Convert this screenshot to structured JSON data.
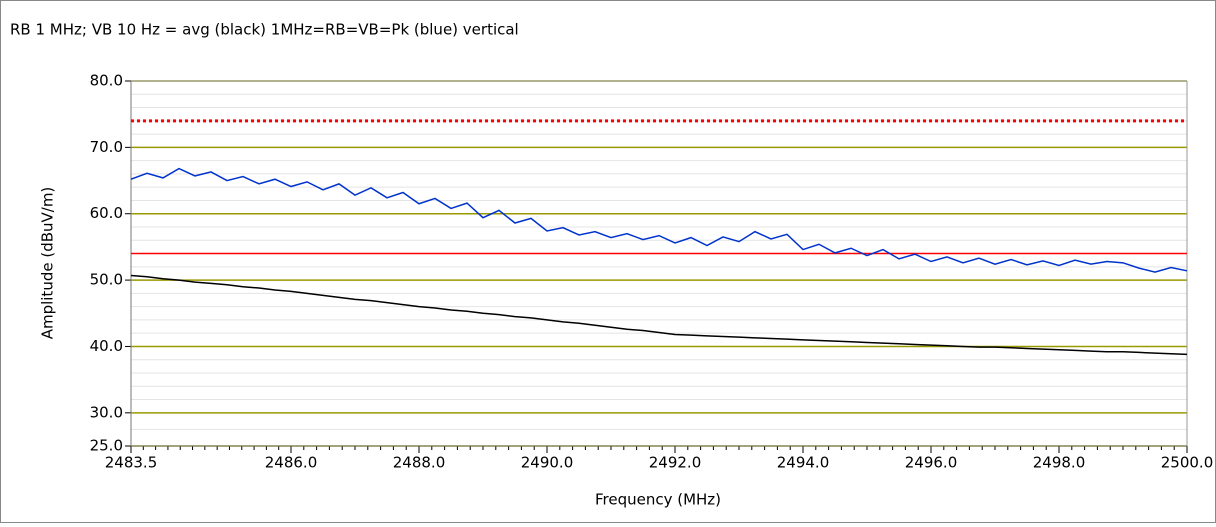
{
  "chart_data": {
    "type": "line",
    "title": "RB 1 MHz; VB 10 Hz = avg (black) 1MHz=RB=VB=Pk (blue) vertical",
    "xlabel": "Frequency (MHz)",
    "ylabel": "Amplitude (dBuV/m)",
    "xlim": [
      2483.5,
      2500
    ],
    "ylim": [
      25,
      80
    ],
    "xticks": [
      {
        "value": 2483.5,
        "label": "2483.5"
      },
      {
        "value": 2486,
        "label": "2486.0"
      },
      {
        "value": 2488,
        "label": "2488.0"
      },
      {
        "value": 2490,
        "label": "2490.0"
      },
      {
        "value": 2492,
        "label": "2492.0"
      },
      {
        "value": 2494,
        "label": "2494.0"
      },
      {
        "value": 2496,
        "label": "2496.0"
      },
      {
        "value": 2498,
        "label": "2498.0"
      },
      {
        "value": 2500,
        "label": "2500.0"
      }
    ],
    "yticks": [
      {
        "value": 25,
        "label": "25.0"
      },
      {
        "value": 30,
        "label": "30.0"
      },
      {
        "value": 40,
        "label": "40.0"
      },
      {
        "value": 50,
        "label": "50.0"
      },
      {
        "value": 60,
        "label": "60.0"
      },
      {
        "value": 70,
        "label": "70.0"
      },
      {
        "value": 80,
        "label": "80.0"
      }
    ],
    "grid": true,
    "grid_color": "#999900",
    "minor_grid": true,
    "reference_lines": [
      {
        "value": 74,
        "color": "#ff0000",
        "style": "dotted"
      },
      {
        "value": 54,
        "color": "#ff0000",
        "style": "solid"
      }
    ],
    "x": [
      2483.5,
      2483.75,
      2484,
      2484.25,
      2484.5,
      2484.75,
      2485,
      2485.25,
      2485.5,
      2485.75,
      2486,
      2486.25,
      2486.5,
      2486.75,
      2487,
      2487.25,
      2487.5,
      2487.75,
      2488,
      2488.25,
      2488.5,
      2488.75,
      2489,
      2489.25,
      2489.5,
      2489.75,
      2490,
      2490.25,
      2490.5,
      2490.75,
      2491,
      2491.25,
      2491.5,
      2491.75,
      2492,
      2492.25,
      2492.5,
      2492.75,
      2493,
      2493.25,
      2493.5,
      2493.75,
      2494,
      2494.25,
      2494.5,
      2494.75,
      2495,
      2495.25,
      2495.5,
      2495.75,
      2496,
      2496.25,
      2496.5,
      2496.75,
      2497,
      2497.25,
      2497.5,
      2497.75,
      2498,
      2498.25,
      2498.5,
      2498.75,
      2499,
      2499.25,
      2499.5,
      2499.75,
      2500
    ],
    "series": [
      {
        "color": "#0033cc",
        "values": [
          65.2,
          66.1,
          65.4,
          66.8,
          65.7,
          66.3,
          65.0,
          65.6,
          64.5,
          65.2,
          64.1,
          64.8,
          63.6,
          64.5,
          62.8,
          63.9,
          62.4,
          63.2,
          61.5,
          62.3,
          60.8,
          61.6,
          59.4,
          60.5,
          58.6,
          59.3,
          57.4,
          57.9,
          56.8,
          57.3,
          56.4,
          57.0,
          56.1,
          56.7,
          55.6,
          56.4,
          55.2,
          56.5,
          55.8,
          57.3,
          56.2,
          56.9,
          54.6,
          55.4,
          54.1,
          54.8,
          53.7,
          54.6,
          53.2,
          53.9,
          52.8,
          53.5,
          52.6,
          53.3,
          52.4,
          53.1,
          52.3,
          52.9,
          52.2,
          53.0,
          52.4,
          52.8,
          52.6,
          51.8,
          51.2,
          51.9,
          51.4
        ]
      },
      {
        "color": "#000000",
        "values": [
          50.7,
          50.5,
          50.2,
          50.0,
          49.7,
          49.5,
          49.3,
          49.0,
          48.8,
          48.5,
          48.3,
          48.0,
          47.7,
          47.4,
          47.1,
          46.9,
          46.6,
          46.3,
          46.0,
          45.8,
          45.5,
          45.3,
          45.0,
          44.8,
          44.5,
          44.3,
          44.0,
          43.7,
          43.5,
          43.2,
          42.9,
          42.6,
          42.4,
          42.1,
          41.8,
          41.7,
          41.6,
          41.5,
          41.4,
          41.3,
          41.2,
          41.1,
          41.0,
          40.9,
          40.8,
          40.7,
          40.6,
          40.5,
          40.4,
          40.3,
          40.2,
          40.1,
          40.0,
          39.9,
          39.9,
          39.8,
          39.7,
          39.6,
          39.5,
          39.4,
          39.3,
          39.2,
          39.2,
          39.1,
          39.0,
          38.9,
          38.8
        ]
      }
    ]
  }
}
